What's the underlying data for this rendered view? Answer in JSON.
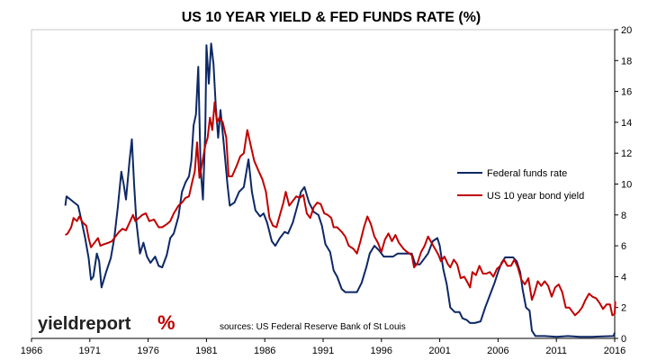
{
  "chart_data": {
    "type": "line",
    "title": "US 10 YEAR YIELD & FED FUNDS RATE (%)",
    "xlabel": "",
    "ylabel": "",
    "xlim": [
      1966,
      2016
    ],
    "ylim": [
      0,
      20
    ],
    "x_ticks": [
      "1966",
      "1971",
      "1976",
      "1981",
      "1986",
      "1991",
      "1996",
      "2001",
      "2006",
      "2011",
      "2016"
    ],
    "y_ticks": [
      "0",
      "2",
      "4",
      "6",
      "8",
      "10",
      "12",
      "14",
      "16",
      "18",
      "20"
    ],
    "grid": "none",
    "y_axis_side": "right",
    "legend_position": "right",
    "series": [
      {
        "name": "Federal funds rate",
        "color": "#0d2866",
        "points": [
          [
            1968.9,
            8.6
          ],
          [
            1969.0,
            9.2
          ],
          [
            1969.5,
            8.9
          ],
          [
            1970.0,
            8.6
          ],
          [
            1970.3,
            7.6
          ],
          [
            1970.6,
            6.5
          ],
          [
            1970.9,
            5.2
          ],
          [
            1971.1,
            3.8
          ],
          [
            1971.3,
            4.0
          ],
          [
            1971.6,
            5.5
          ],
          [
            1971.8,
            5.0
          ],
          [
            1972.0,
            3.3
          ],
          [
            1972.4,
            4.3
          ],
          [
            1972.8,
            5.2
          ],
          [
            1973.1,
            6.5
          ],
          [
            1973.4,
            8.5
          ],
          [
            1973.7,
            10.8
          ],
          [
            1973.9,
            10.0
          ],
          [
            1974.1,
            9.0
          ],
          [
            1974.4,
            11.5
          ],
          [
            1974.6,
            12.9
          ],
          [
            1974.8,
            10.0
          ],
          [
            1975.0,
            7.5
          ],
          [
            1975.3,
            5.5
          ],
          [
            1975.6,
            6.2
          ],
          [
            1975.9,
            5.3
          ],
          [
            1976.2,
            4.9
          ],
          [
            1976.6,
            5.3
          ],
          [
            1976.9,
            4.7
          ],
          [
            1977.2,
            4.6
          ],
          [
            1977.6,
            5.4
          ],
          [
            1977.9,
            6.5
          ],
          [
            1978.2,
            6.8
          ],
          [
            1978.6,
            7.9
          ],
          [
            1978.9,
            9.5
          ],
          [
            1979.2,
            10.1
          ],
          [
            1979.5,
            10.5
          ],
          [
            1979.7,
            11.5
          ],
          [
            1979.9,
            13.8
          ],
          [
            1980.1,
            14.5
          ],
          [
            1980.3,
            17.6
          ],
          [
            1980.5,
            11.0
          ],
          [
            1980.7,
            9.0
          ],
          [
            1980.9,
            13.5
          ],
          [
            1981.0,
            19.0
          ],
          [
            1981.2,
            16.5
          ],
          [
            1981.4,
            19.1
          ],
          [
            1981.6,
            17.8
          ],
          [
            1981.8,
            15.0
          ],
          [
            1982.0,
            13.0
          ],
          [
            1982.2,
            14.8
          ],
          [
            1982.5,
            12.5
          ],
          [
            1982.8,
            10.0
          ],
          [
            1983.0,
            8.6
          ],
          [
            1983.4,
            8.8
          ],
          [
            1983.8,
            9.5
          ],
          [
            1984.2,
            9.8
          ],
          [
            1984.6,
            11.6
          ],
          [
            1984.9,
            9.5
          ],
          [
            1985.2,
            8.3
          ],
          [
            1985.6,
            7.9
          ],
          [
            1985.9,
            8.1
          ],
          [
            1986.2,
            7.5
          ],
          [
            1986.6,
            6.3
          ],
          [
            1986.9,
            6.0
          ],
          [
            1987.3,
            6.5
          ],
          [
            1987.7,
            6.9
          ],
          [
            1988.0,
            6.8
          ],
          [
            1988.4,
            7.5
          ],
          [
            1988.8,
            8.6
          ],
          [
            1989.1,
            9.5
          ],
          [
            1989.4,
            9.8
          ],
          [
            1989.8,
            8.8
          ],
          [
            1990.2,
            8.2
          ],
          [
            1990.6,
            8.0
          ],
          [
            1990.9,
            7.3
          ],
          [
            1991.2,
            6.1
          ],
          [
            1991.6,
            5.6
          ],
          [
            1991.9,
            4.4
          ],
          [
            1992.2,
            4.0
          ],
          [
            1992.6,
            3.2
          ],
          [
            1992.9,
            3.0
          ],
          [
            1993.4,
            3.0
          ],
          [
            1993.9,
            3.0
          ],
          [
            1994.3,
            3.6
          ],
          [
            1994.7,
            4.6
          ],
          [
            1995.0,
            5.5
          ],
          [
            1995.4,
            6.0
          ],
          [
            1995.8,
            5.7
          ],
          [
            1996.2,
            5.3
          ],
          [
            1996.6,
            5.3
          ],
          [
            1997.0,
            5.3
          ],
          [
            1997.4,
            5.5
          ],
          [
            1997.8,
            5.5
          ],
          [
            1998.2,
            5.5
          ],
          [
            1998.6,
            5.5
          ],
          [
            1998.9,
            4.8
          ],
          [
            1999.3,
            4.8
          ],
          [
            1999.7,
            5.2
          ],
          [
            2000.0,
            5.5
          ],
          [
            2000.4,
            6.3
          ],
          [
            2000.8,
            6.5
          ],
          [
            2001.0,
            6.0
          ],
          [
            2001.3,
            4.5
          ],
          [
            2001.6,
            3.5
          ],
          [
            2001.9,
            2.0
          ],
          [
            2002.3,
            1.7
          ],
          [
            2002.7,
            1.7
          ],
          [
            2002.95,
            1.3
          ],
          [
            2003.3,
            1.2
          ],
          [
            2003.6,
            1.0
          ],
          [
            2004.0,
            1.0
          ],
          [
            2004.5,
            1.1
          ],
          [
            2004.9,
            2.0
          ],
          [
            2005.3,
            2.8
          ],
          [
            2005.7,
            3.6
          ],
          [
            2006.0,
            4.3
          ],
          [
            2006.3,
            4.9
          ],
          [
            2006.6,
            5.25
          ],
          [
            2007.0,
            5.25
          ],
          [
            2007.3,
            5.25
          ],
          [
            2007.6,
            5.0
          ],
          [
            2007.9,
            4.3
          ],
          [
            2008.1,
            3.2
          ],
          [
            2008.4,
            2.0
          ],
          [
            2008.7,
            1.8
          ],
          [
            2008.9,
            0.5
          ],
          [
            2009.2,
            0.15
          ],
          [
            2010.0,
            0.15
          ],
          [
            2011.0,
            0.1
          ],
          [
            2012.0,
            0.15
          ],
          [
            2013.0,
            0.1
          ],
          [
            2014.0,
            0.1
          ],
          [
            2015.0,
            0.13
          ],
          [
            2015.9,
            0.15
          ],
          [
            2016.0,
            0.37
          ]
        ]
      },
      {
        "name": "US 10 year bond yield",
        "color": "#c00000",
        "points": [
          [
            1968.9,
            6.7
          ],
          [
            1969.1,
            6.8
          ],
          [
            1969.4,
            7.2
          ],
          [
            1969.6,
            7.8
          ],
          [
            1969.9,
            7.6
          ],
          [
            1970.1,
            7.9
          ],
          [
            1970.4,
            7.5
          ],
          [
            1970.7,
            7.3
          ],
          [
            1970.9,
            6.5
          ],
          [
            1971.1,
            5.9
          ],
          [
            1971.4,
            6.2
          ],
          [
            1971.7,
            6.5
          ],
          [
            1971.9,
            6.0
          ],
          [
            1972.2,
            6.1
          ],
          [
            1972.6,
            6.2
          ],
          [
            1972.9,
            6.3
          ],
          [
            1973.2,
            6.6
          ],
          [
            1973.5,
            6.9
          ],
          [
            1973.8,
            7.1
          ],
          [
            1974.1,
            7.0
          ],
          [
            1974.4,
            7.5
          ],
          [
            1974.7,
            8.0
          ],
          [
            1974.9,
            7.6
          ],
          [
            1975.2,
            7.8
          ],
          [
            1975.5,
            8.0
          ],
          [
            1975.8,
            8.1
          ],
          [
            1976.1,
            7.6
          ],
          [
            1976.5,
            7.7
          ],
          [
            1976.9,
            7.2
          ],
          [
            1977.2,
            7.2
          ],
          [
            1977.6,
            7.4
          ],
          [
            1977.9,
            7.6
          ],
          [
            1978.2,
            8.1
          ],
          [
            1978.6,
            8.6
          ],
          [
            1978.9,
            8.8
          ],
          [
            1979.2,
            9.1
          ],
          [
            1979.5,
            9.2
          ],
          [
            1979.8,
            10.2
          ],
          [
            1980.0,
            10.8
          ],
          [
            1980.2,
            12.7
          ],
          [
            1980.4,
            10.4
          ],
          [
            1980.6,
            11.2
          ],
          [
            1980.9,
            12.5
          ],
          [
            1981.1,
            13.0
          ],
          [
            1981.3,
            14.3
          ],
          [
            1981.5,
            13.5
          ],
          [
            1981.7,
            15.3
          ],
          [
            1981.9,
            14.0
          ],
          [
            1982.1,
            14.3
          ],
          [
            1982.4,
            14.0
          ],
          [
            1982.7,
            13.0
          ],
          [
            1982.9,
            10.5
          ],
          [
            1983.2,
            10.5
          ],
          [
            1983.6,
            11.2
          ],
          [
            1983.9,
            11.8
          ],
          [
            1984.2,
            12.0
          ],
          [
            1984.5,
            13.5
          ],
          [
            1984.8,
            12.5
          ],
          [
            1985.1,
            11.5
          ],
          [
            1985.5,
            10.8
          ],
          [
            1985.8,
            10.3
          ],
          [
            1986.1,
            9.5
          ],
          [
            1986.4,
            7.8
          ],
          [
            1986.7,
            7.3
          ],
          [
            1987.0,
            7.2
          ],
          [
            1987.3,
            8.0
          ],
          [
            1987.6,
            8.8
          ],
          [
            1987.8,
            9.5
          ],
          [
            1988.1,
            8.6
          ],
          [
            1988.4,
            8.9
          ],
          [
            1988.7,
            9.2
          ],
          [
            1989.0,
            9.1
          ],
          [
            1989.3,
            9.3
          ],
          [
            1989.6,
            8.1
          ],
          [
            1989.9,
            7.8
          ],
          [
            1990.2,
            8.5
          ],
          [
            1990.5,
            8.8
          ],
          [
            1990.8,
            8.7
          ],
          [
            1991.1,
            8.1
          ],
          [
            1991.4,
            8.0
          ],
          [
            1991.7,
            7.8
          ],
          [
            1991.9,
            7.2
          ],
          [
            1992.2,
            7.2
          ],
          [
            1992.6,
            6.9
          ],
          [
            1992.9,
            6.6
          ],
          [
            1993.2,
            6.0
          ],
          [
            1993.6,
            5.8
          ],
          [
            1993.9,
            5.5
          ],
          [
            1994.2,
            6.3
          ],
          [
            1994.5,
            7.2
          ],
          [
            1994.8,
            7.9
          ],
          [
            1995.1,
            7.4
          ],
          [
            1995.4,
            6.6
          ],
          [
            1995.7,
            6.2
          ],
          [
            1996.0,
            5.6
          ],
          [
            1996.3,
            6.4
          ],
          [
            1996.6,
            6.8
          ],
          [
            1996.9,
            6.3
          ],
          [
            1997.2,
            6.7
          ],
          [
            1997.5,
            6.2
          ],
          [
            1997.9,
            5.8
          ],
          [
            1998.2,
            5.6
          ],
          [
            1998.6,
            5.4
          ],
          [
            1998.8,
            4.6
          ],
          [
            1999.1,
            4.9
          ],
          [
            1999.4,
            5.6
          ],
          [
            1999.7,
            6.0
          ],
          [
            2000.0,
            6.6
          ],
          [
            2000.3,
            6.2
          ],
          [
            2000.6,
            5.8
          ],
          [
            2000.9,
            5.4
          ],
          [
            2001.1,
            5.0
          ],
          [
            2001.4,
            5.3
          ],
          [
            2001.7,
            4.8
          ],
          [
            2001.9,
            4.6
          ],
          [
            2002.2,
            5.1
          ],
          [
            2002.5,
            4.8
          ],
          [
            2002.8,
            3.9
          ],
          [
            2003.1,
            4.0
          ],
          [
            2003.4,
            3.6
          ],
          [
            2003.6,
            3.3
          ],
          [
            2003.8,
            4.3
          ],
          [
            2004.1,
            4.1
          ],
          [
            2004.4,
            4.7
          ],
          [
            2004.7,
            4.2
          ],
          [
            2005.0,
            4.2
          ],
          [
            2005.3,
            4.3
          ],
          [
            2005.6,
            4.0
          ],
          [
            2005.9,
            4.5
          ],
          [
            2006.2,
            4.7
          ],
          [
            2006.5,
            5.1
          ],
          [
            2006.8,
            4.7
          ],
          [
            2007.1,
            4.7
          ],
          [
            2007.4,
            5.1
          ],
          [
            2007.7,
            4.6
          ],
          [
            2008.0,
            3.8
          ],
          [
            2008.3,
            3.5
          ],
          [
            2008.6,
            3.9
          ],
          [
            2008.9,
            2.5
          ],
          [
            2009.1,
            2.9
          ],
          [
            2009.4,
            3.7
          ],
          [
            2009.7,
            3.4
          ],
          [
            2010.0,
            3.7
          ],
          [
            2010.3,
            3.4
          ],
          [
            2010.6,
            2.7
          ],
          [
            2010.9,
            3.3
          ],
          [
            2011.2,
            3.5
          ],
          [
            2011.5,
            3.0
          ],
          [
            2011.8,
            2.0
          ],
          [
            2012.1,
            2.0
          ],
          [
            2012.4,
            1.7
          ],
          [
            2012.6,
            1.5
          ],
          [
            2012.9,
            1.7
          ],
          [
            2013.2,
            2.0
          ],
          [
            2013.5,
            2.5
          ],
          [
            2013.8,
            2.9
          ],
          [
            2014.1,
            2.7
          ],
          [
            2014.4,
            2.6
          ],
          [
            2014.7,
            2.3
          ],
          [
            2015.0,
            1.9
          ],
          [
            2015.3,
            2.2
          ],
          [
            2015.6,
            2.2
          ],
          [
            2015.8,
            1.5
          ],
          [
            2016.0,
            1.6
          ],
          [
            2016.05,
            2.4
          ]
        ]
      }
    ],
    "annotations": [
      "sources: US Federal Reserve Bank of St Louis"
    ]
  },
  "branding": {
    "logo_text": "yieldreport",
    "logo_mark": "%"
  }
}
